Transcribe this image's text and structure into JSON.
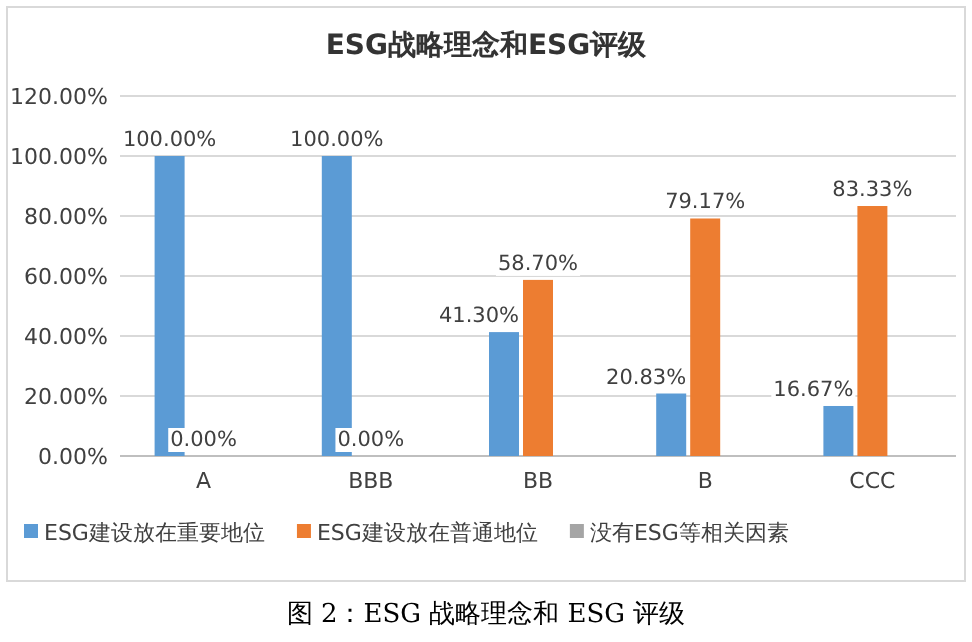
{
  "chart_data": {
    "type": "bar",
    "title": "ESG战略理念和ESG评级",
    "categories": [
      "A",
      "BBB",
      "BB",
      "B",
      "CCC"
    ],
    "series": [
      {
        "name": "ESG建设放在重要地位",
        "color": "#5b9bd5",
        "values": [
          100,
          100,
          41.3,
          20.83,
          16.67
        ],
        "value_labels": [
          "100.00%",
          "100.00%",
          "41.30%",
          "20.83%",
          "16.67%"
        ]
      },
      {
        "name": "ESG建设放在普通地位",
        "color": "#ed7d31",
        "values": [
          0,
          0,
          58.7,
          79.17,
          83.33
        ],
        "value_labels": [
          "0.00%",
          "0.00%",
          "58.70%",
          "79.17%",
          "83.33%"
        ]
      },
      {
        "name": "没有ESG等相关因素",
        "color": "#a5a5a5",
        "values": [
          null,
          null,
          null,
          null,
          null
        ]
      }
    ],
    "ylim": [
      0,
      120
    ],
    "yticks": [
      {
        "value": 0,
        "label": "0.00%"
      },
      {
        "value": 20,
        "label": "20.00%"
      },
      {
        "value": 40,
        "label": "40.00%"
      },
      {
        "value": 60,
        "label": "60.00%"
      },
      {
        "value": 80,
        "label": "80.00%"
      },
      {
        "value": 100,
        "label": "100.00%"
      },
      {
        "value": 120,
        "label": "120.00%"
      }
    ],
    "grid": "y",
    "legend": "bottom",
    "annotations": [
      "图 2：ESG 战略理念和 ESG 评级"
    ]
  }
}
